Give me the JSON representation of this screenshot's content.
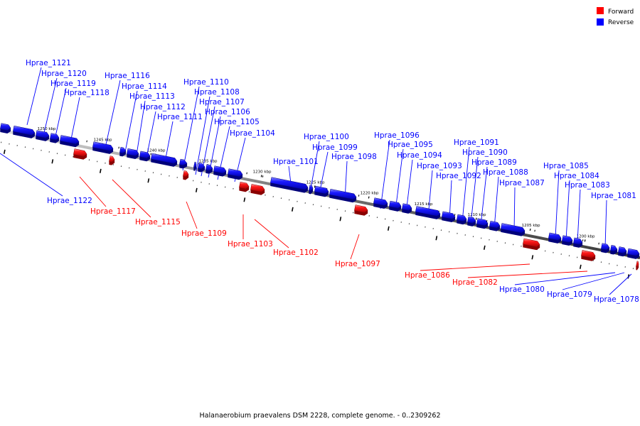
{
  "legend": {
    "forward": {
      "label": "Forward",
      "color": "#ff0000"
    },
    "reverse": {
      "label": "Reverse",
      "color": "#0000ff"
    }
  },
  "caption": "Halanaerobium praevalens DSM 2228, complete genome. - 0..2309262",
  "scale_labels": [
    "1250 kbp",
    "1245 kbp",
    "1240 kbp",
    "1235 kbp",
    "1230 kbp",
    "1225 kbp",
    "1220 kbp",
    "1215 kbp",
    "1210 kbp",
    "1205 kbp",
    "1200 kbp"
  ],
  "genes": [
    {
      "name": "Hprae_1121",
      "strand": "reverse"
    },
    {
      "name": "Hprae_1120",
      "strand": "reverse"
    },
    {
      "name": "Hprae_1119",
      "strand": "reverse"
    },
    {
      "name": "Hprae_1118",
      "strand": "reverse"
    },
    {
      "name": "Hprae_1116",
      "strand": "reverse"
    },
    {
      "name": "Hprae_1114",
      "strand": "reverse"
    },
    {
      "name": "Hprae_1113",
      "strand": "reverse"
    },
    {
      "name": "Hprae_1112",
      "strand": "reverse"
    },
    {
      "name": "Hprae_1111",
      "strand": "reverse"
    },
    {
      "name": "Hprae_1110",
      "strand": "reverse"
    },
    {
      "name": "Hprae_1108",
      "strand": "reverse"
    },
    {
      "name": "Hprae_1107",
      "strand": "reverse"
    },
    {
      "name": "Hprae_1106",
      "strand": "reverse"
    },
    {
      "name": "Hprae_1105",
      "strand": "reverse"
    },
    {
      "name": "Hprae_1104",
      "strand": "reverse"
    },
    {
      "name": "Hprae_1101",
      "strand": "reverse"
    },
    {
      "name": "Hprae_1100",
      "strand": "reverse"
    },
    {
      "name": "Hprae_1099",
      "strand": "reverse"
    },
    {
      "name": "Hprae_1098",
      "strand": "reverse"
    },
    {
      "name": "Hprae_1096",
      "strand": "reverse"
    },
    {
      "name": "Hprae_1095",
      "strand": "reverse"
    },
    {
      "name": "Hprae_1094",
      "strand": "reverse"
    },
    {
      "name": "Hprae_1093",
      "strand": "reverse"
    },
    {
      "name": "Hprae_1092",
      "strand": "reverse"
    },
    {
      "name": "Hprae_1091",
      "strand": "reverse"
    },
    {
      "name": "Hprae_1090",
      "strand": "reverse"
    },
    {
      "name": "Hprae_1089",
      "strand": "reverse"
    },
    {
      "name": "Hprae_1088",
      "strand": "reverse"
    },
    {
      "name": "Hprae_1087",
      "strand": "reverse"
    },
    {
      "name": "Hprae_1085",
      "strand": "reverse"
    },
    {
      "name": "Hprae_1084",
      "strand": "reverse"
    },
    {
      "name": "Hprae_1083",
      "strand": "reverse"
    },
    {
      "name": "Hprae_1081",
      "strand": "reverse"
    },
    {
      "name": "Hprae_1122",
      "strand": "reverse"
    },
    {
      "name": "Hprae_1080",
      "strand": "reverse"
    },
    {
      "name": "Hprae_1079",
      "strand": "reverse"
    },
    {
      "name": "Hprae_1078",
      "strand": "reverse"
    },
    {
      "name": "Hprae_1117",
      "strand": "forward"
    },
    {
      "name": "Hprae_1115",
      "strand": "forward"
    },
    {
      "name": "Hprae_1109",
      "strand": "forward"
    },
    {
      "name": "Hprae_1103",
      "strand": "forward"
    },
    {
      "name": "Hprae_1102",
      "strand": "forward"
    },
    {
      "name": "Hprae_1097",
      "strand": "forward"
    },
    {
      "name": "Hprae_1086",
      "strand": "forward"
    },
    {
      "name": "Hprae_1082",
      "strand": "forward"
    }
  ]
}
